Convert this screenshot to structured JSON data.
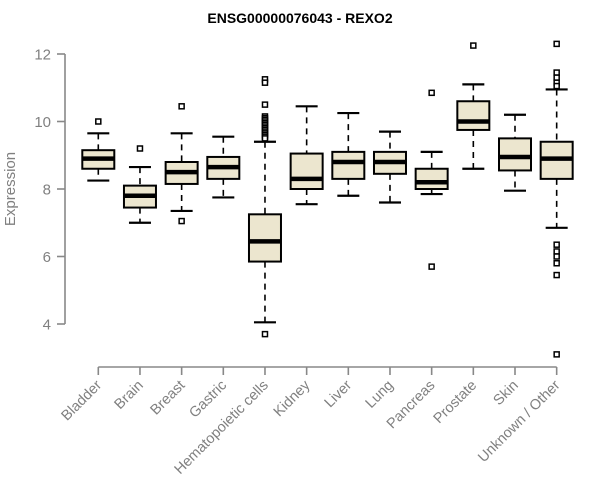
{
  "chart_data": {
    "type": "boxplot",
    "title": "ENSG00000076043 - REXO2",
    "xlabel": "",
    "ylabel": "Expression",
    "ylim": [
      4,
      12
    ],
    "yticks": [
      4,
      6,
      8,
      10,
      12
    ],
    "grid": false,
    "legend": "none",
    "box_fill_color": "#ECE6CF",
    "box_stroke_color": "#000000",
    "axis_color": "#888888",
    "label_color": "#808080",
    "categories": [
      "Bladder",
      "Brain",
      "Breast",
      "Gastric",
      "Hematopoietic cells",
      "Kidney",
      "Liver",
      "Lung",
      "Pancreas",
      "Prostate",
      "Skin",
      "Unknown / Other"
    ],
    "series": [
      {
        "category": "Bladder",
        "whisker_low": 8.25,
        "q1": 8.6,
        "median": 8.9,
        "q3": 9.15,
        "whisker_high": 9.65,
        "outliers": [
          10.0
        ]
      },
      {
        "category": "Brain",
        "whisker_low": 7.0,
        "q1": 7.45,
        "median": 7.8,
        "q3": 8.1,
        "whisker_high": 8.65,
        "outliers": [
          9.2
        ]
      },
      {
        "category": "Breast",
        "whisker_low": 7.35,
        "q1": 8.15,
        "median": 8.5,
        "q3": 8.8,
        "whisker_high": 9.65,
        "outliers": [
          10.45,
          7.05
        ]
      },
      {
        "category": "Gastric",
        "whisker_low": 7.75,
        "q1": 8.3,
        "median": 8.65,
        "q3": 8.95,
        "whisker_high": 9.55,
        "outliers": []
      },
      {
        "category": "Hematopoietic cells",
        "whisker_low": 4.05,
        "q1": 5.85,
        "median": 6.45,
        "q3": 7.25,
        "whisker_high": 9.4,
        "outliers": [
          11.25,
          11.15,
          10.5,
          10.15,
          10.1,
          10.05,
          10.0,
          9.95,
          9.9,
          9.85,
          9.8,
          9.75,
          9.7,
          9.65,
          9.6,
          9.55,
          9.5,
          3.7
        ]
      },
      {
        "category": "Kidney",
        "whisker_low": 7.55,
        "q1": 8.0,
        "median": 8.3,
        "q3": 9.05,
        "whisker_high": 10.45,
        "outliers": []
      },
      {
        "category": "Liver",
        "whisker_low": 7.8,
        "q1": 8.3,
        "median": 8.8,
        "q3": 9.1,
        "whisker_high": 10.25,
        "outliers": []
      },
      {
        "category": "Lung",
        "whisker_low": 7.6,
        "q1": 8.45,
        "median": 8.8,
        "q3": 9.1,
        "whisker_high": 9.7,
        "outliers": []
      },
      {
        "category": "Pancreas",
        "whisker_low": 7.85,
        "q1": 8.0,
        "median": 8.2,
        "q3": 8.6,
        "whisker_high": 9.1,
        "outliers": [
          10.85,
          5.7
        ]
      },
      {
        "category": "Prostate",
        "whisker_low": 8.6,
        "q1": 9.75,
        "median": 10.0,
        "q3": 10.6,
        "whisker_high": 11.1,
        "outliers": [
          12.25
        ]
      },
      {
        "category": "Skin",
        "whisker_low": 7.95,
        "q1": 8.55,
        "median": 8.95,
        "q3": 9.5,
        "whisker_high": 10.2,
        "outliers": []
      },
      {
        "category": "Unknown / Other",
        "whisker_low": 6.85,
        "q1": 8.3,
        "median": 8.9,
        "q3": 9.4,
        "whisker_high": 10.95,
        "outliers": [
          12.3,
          11.45,
          11.3,
          11.15,
          11.05,
          6.35,
          6.15,
          6.0,
          5.8,
          5.45,
          3.1
        ]
      }
    ]
  }
}
